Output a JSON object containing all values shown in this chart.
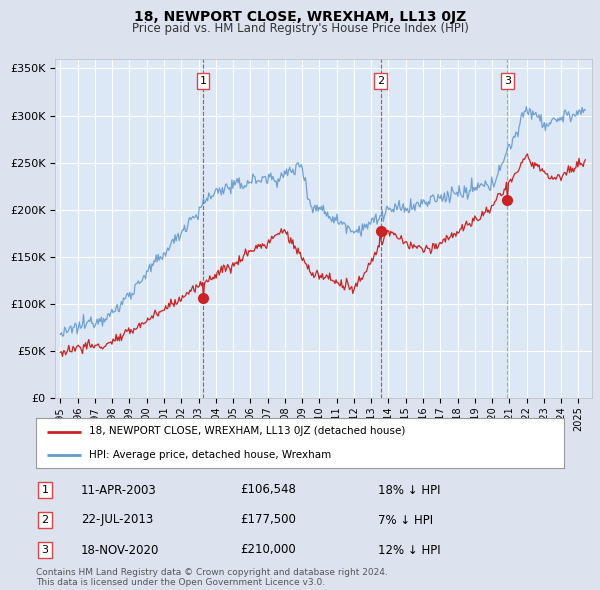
{
  "title": "18, NEWPORT CLOSE, WREXHAM, LL13 0JZ",
  "subtitle": "Price paid vs. HM Land Registry's House Price Index (HPI)",
  "ylim": [
    0,
    360000
  ],
  "yticks": [
    0,
    50000,
    100000,
    150000,
    200000,
    250000,
    300000,
    350000
  ],
  "ytick_labels": [
    "£0",
    "£50K",
    "£100K",
    "£150K",
    "£200K",
    "£250K",
    "£300K",
    "£350K"
  ],
  "bg_color": "#dce3ef",
  "plot_bg_color": "#dce8f5",
  "grid_color": "#ffffff",
  "hpi_color": "#6699cc",
  "price_color": "#cc2222",
  "sale1_date": 2003.27,
  "sale1_price": 106548,
  "sale2_date": 2013.55,
  "sale2_price": 177500,
  "sale3_date": 2020.88,
  "sale3_price": 210000,
  "vline_color_red": "#dd4444",
  "vline_color_gray": "#aaaaaa",
  "legend_line1": "18, NEWPORT CLOSE, WREXHAM, LL13 0JZ (detached house)",
  "legend_line2": "HPI: Average price, detached house, Wrexham",
  "table_rows": [
    {
      "num": "1",
      "date": "11-APR-2003",
      "price": "£106,548",
      "pct": "18% ↓ HPI"
    },
    {
      "num": "2",
      "date": "22-JUL-2013",
      "price": "£177,500",
      "pct": "7% ↓ HPI"
    },
    {
      "num": "3",
      "date": "18-NOV-2020",
      "price": "£210,000",
      "pct": "12% ↓ HPI"
    }
  ],
  "footer": "Contains HM Land Registry data © Crown copyright and database right 2024.\nThis data is licensed under the Open Government Licence v3.0."
}
